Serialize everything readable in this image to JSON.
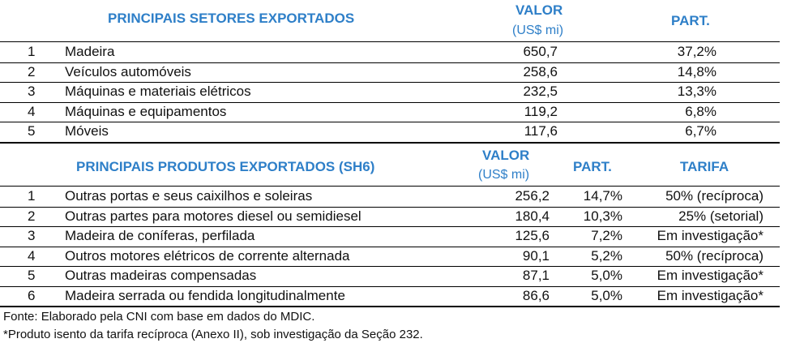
{
  "sectors": {
    "title": "PRINCIPAIS SETORES EXPORTADOS",
    "value_label": "VALOR",
    "value_unit": "(US$ mi)",
    "share_label": "PART.",
    "rows": [
      {
        "rank": "1",
        "name": "Madeira",
        "value": "650,7",
        "share": "37,2%"
      },
      {
        "rank": "2",
        "name": "Veículos automóveis",
        "value": "258,6",
        "share": "14,8%"
      },
      {
        "rank": "3",
        "name": "Máquinas e materiais elétricos",
        "value": "232,5",
        "share": "13,3%"
      },
      {
        "rank": "4",
        "name": "Máquinas e equipamentos",
        "value": "119,2",
        "share": "6,8%"
      },
      {
        "rank": "5",
        "name": "Móveis",
        "value": "117,6",
        "share": "6,7%"
      }
    ]
  },
  "products": {
    "title": "PRINCIPAIS PRODUTOS EXPORTADOS (SH6)",
    "value_label": "VALOR",
    "value_unit": "(US$ mi)",
    "share_label": "PART.",
    "tariff_label": "TARIFA",
    "rows": [
      {
        "rank": "1",
        "name": "Outras portas e seus caixilhos e soleiras",
        "value": "256,2",
        "share": "14,7%",
        "tariff": "50% (recíproca)"
      },
      {
        "rank": "2",
        "name": "Outras partes para motores diesel ou semidiesel",
        "value": "180,4",
        "share": "10,3%",
        "tariff": "25% (setorial)"
      },
      {
        "rank": "3",
        "name": "Madeira de coníferas, perfilada",
        "value": "125,6",
        "share": "7,2%",
        "tariff": "Em investigação*"
      },
      {
        "rank": "4",
        "name": "Outros motores elétricos de corrente alternada",
        "value": "90,1",
        "share": "5,2%",
        "tariff": "50% (recíproca)"
      },
      {
        "rank": "5",
        "name": "Outras madeiras compensadas",
        "value": "87,1",
        "share": "5,0%",
        "tariff": "Em investigação*"
      },
      {
        "rank": "6",
        "name": "Madeira serrada ou fendida longitudinalmente",
        "value": "86,6",
        "share": "5,0%",
        "tariff": "Em investigação*"
      }
    ]
  },
  "footnotes": {
    "source": "Fonte: Elaborado pela CNI com base em dados do MDIC.",
    "note": "*Produto isento da tarifa recíproca (Anexo II), sob investigação da Seção 232."
  }
}
